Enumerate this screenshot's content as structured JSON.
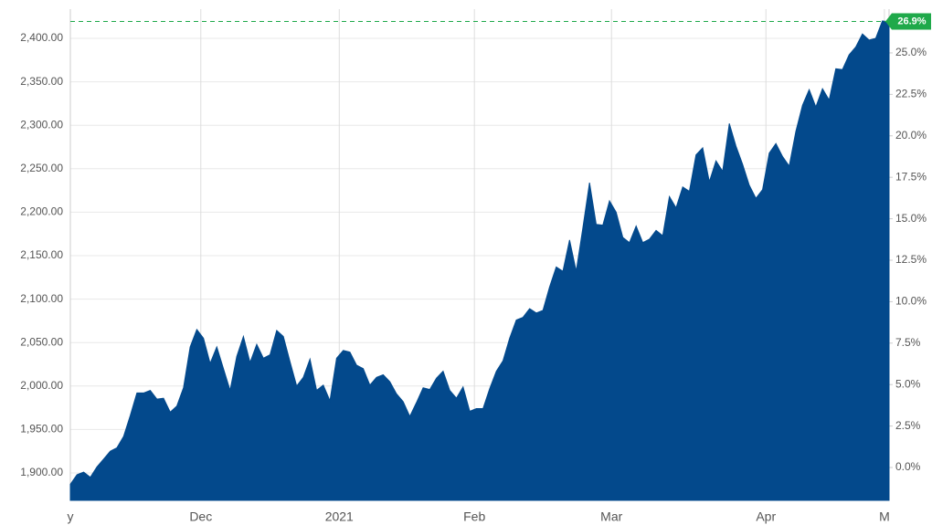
{
  "chart_data": {
    "type": "area",
    "x": [
      0,
      1,
      2,
      3,
      4,
      5,
      6,
      7,
      8,
      9,
      10,
      11,
      12,
      13,
      14,
      15,
      16,
      17,
      18,
      19,
      20,
      21,
      22,
      23,
      24,
      25,
      26,
      27,
      28,
      29,
      30,
      31,
      32,
      33,
      34,
      35,
      36,
      37,
      38,
      39,
      40,
      41,
      42,
      43,
      44,
      45,
      46,
      47,
      48,
      49,
      50,
      51,
      52,
      53,
      54,
      55,
      56,
      57,
      58,
      59,
      60,
      61,
      62,
      63,
      64,
      65,
      66,
      67,
      68,
      69,
      70,
      71,
      72,
      73,
      74,
      75,
      76,
      77,
      78,
      79,
      80,
      81,
      82,
      83,
      84,
      85,
      86,
      87,
      88,
      89,
      90,
      91,
      92,
      93,
      94,
      95,
      96,
      97,
      98,
      99,
      100,
      101,
      102,
      103,
      104,
      105,
      106,
      107,
      108,
      109,
      110,
      111,
      112,
      113,
      114,
      115,
      116,
      117,
      118,
      119,
      120,
      121,
      122,
      123
    ],
    "values": [
      1887,
      1898,
      1901,
      1895,
      1907,
      1916,
      1925,
      1929,
      1942,
      1966,
      1992,
      1992,
      1995,
      1985,
      1986,
      1970,
      1977,
      1998,
      2045,
      2065,
      2055,
      2026,
      2045,
      2020,
      1995,
      2034,
      2057,
      2027,
      2048,
      2032,
      2036,
      2064,
      2057,
      2028,
      2000,
      2010,
      2031,
      1995,
      2001,
      1983,
      2032,
      2041,
      2039,
      2024,
      2020,
      2001,
      2010,
      2013,
      2005,
      1991,
      1982,
      1965,
      1981,
      1998,
      1996,
      2009,
      2017,
      1995,
      1986,
      1999,
      1971,
      1974,
      1974,
      1997,
      2017,
      2029,
      2055,
      2076,
      2079,
      2089,
      2084,
      2087,
      2114,
      2137,
      2132,
      2168,
      2132,
      2182,
      2234,
      2186,
      2185,
      2213,
      2200,
      2171,
      2165,
      2184,
      2165,
      2169,
      2179,
      2173,
      2218,
      2205,
      2229,
      2224,
      2266,
      2274,
      2235,
      2259,
      2247,
      2302,
      2276,
      2255,
      2231,
      2216,
      2226,
      2268,
      2279,
      2264,
      2253,
      2293,
      2323,
      2341,
      2321,
      2342,
      2329,
      2365,
      2364,
      2381,
      2390,
      2405,
      2398,
      2400,
      2420,
      2419
    ],
    "color": "#03498c",
    "xlim": [
      0,
      123
    ],
    "xticks": [
      {
        "value": 0,
        "label": "y"
      },
      {
        "value": 19.6,
        "label": "Dec"
      },
      {
        "value": 40.4,
        "label": "2021"
      },
      {
        "value": 60.7,
        "label": "Feb"
      },
      {
        "value": 81.3,
        "label": "Mar"
      },
      {
        "value": 104.5,
        "label": "Apr"
      },
      {
        "value": 122.3,
        "label": "M"
      }
    ],
    "ylim": [
      1868.5,
      2433.6
    ],
    "yticks": [
      {
        "value": 1900,
        "label": "1,900.00"
      },
      {
        "value": 1950,
        "label": "1,950.00"
      },
      {
        "value": 2000,
        "label": "2,000.00"
      },
      {
        "value": 2050,
        "label": "2,050.00"
      },
      {
        "value": 2100,
        "label": "2,100.00"
      },
      {
        "value": 2150,
        "label": "2,150.00"
      },
      {
        "value": 2200,
        "label": "2,200.00"
      },
      {
        "value": 2250,
        "label": "2,250.00"
      },
      {
        "value": 2300,
        "label": "2,300.00"
      },
      {
        "value": 2350,
        "label": "2,350.00"
      },
      {
        "value": 2400,
        "label": "2,400.00"
      }
    ],
    "y2lim": [
      -1.98,
      27.64
    ],
    "y2ticks": [
      {
        "value": 0,
        "label": "0.0%"
      },
      {
        "value": 2.5,
        "label": "2.5%"
      },
      {
        "value": 5,
        "label": "5.0%"
      },
      {
        "value": 7.5,
        "label": "7.5%"
      },
      {
        "value": 10,
        "label": "10.0%"
      },
      {
        "value": 12.5,
        "label": "12.5%"
      },
      {
        "value": 15,
        "label": "15.0%"
      },
      {
        "value": 17.5,
        "label": "17.5%"
      },
      {
        "value": 20,
        "label": "20.0%"
      },
      {
        "value": 22.5,
        "label": "22.5%"
      },
      {
        "value": 25,
        "label": "25.0%"
      }
    ],
    "marker": {
      "value": 26.9,
      "label": "26.9%",
      "color": "#1fa94a"
    },
    "grid": true
  }
}
